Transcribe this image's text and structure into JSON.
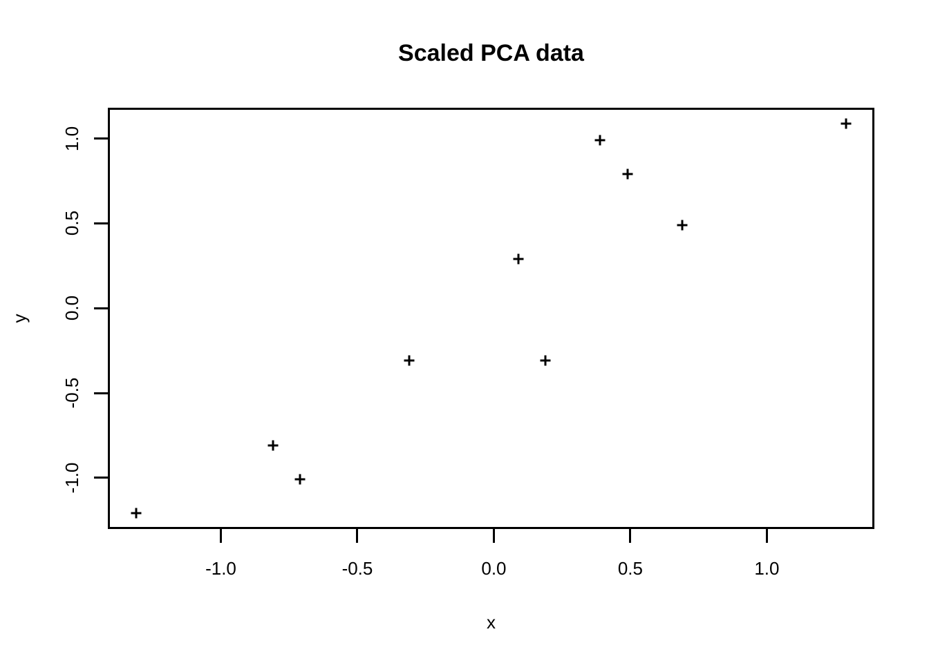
{
  "figure": {
    "background": "#ffffff",
    "foreground": "#000000"
  },
  "chart_data": {
    "type": "scatter",
    "title": "Scaled PCA data",
    "xlabel": "x",
    "ylabel": "y",
    "marker": "plus",
    "point_color": "#000000",
    "grid": false,
    "xlim": [
      -1.414,
      1.394
    ],
    "ylim": [
      -1.302,
      1.182
    ],
    "xticks": {
      "values": [
        -1.0,
        -0.5,
        0.0,
        0.5,
        1.0
      ],
      "labels": [
        "-1.0",
        "-0.5",
        "0.0",
        "0.5",
        "1.0"
      ]
    },
    "yticks": {
      "values": [
        -1.0,
        -0.5,
        0.0,
        0.5,
        1.0
      ],
      "labels": [
        "-1.0",
        "-0.5",
        "0.0",
        "0.5",
        "1.0"
      ]
    },
    "points": [
      {
        "x": 0.69,
        "y": 0.49
      },
      {
        "x": -1.31,
        "y": -1.21
      },
      {
        "x": 0.39,
        "y": 0.99
      },
      {
        "x": 0.09,
        "y": 0.29
      },
      {
        "x": 1.29,
        "y": 1.09
      },
      {
        "x": 0.49,
        "y": 0.79
      },
      {
        "x": 0.19,
        "y": -0.31
      },
      {
        "x": -0.81,
        "y": -0.81
      },
      {
        "x": -0.31,
        "y": -0.31
      },
      {
        "x": -0.71,
        "y": -1.01
      }
    ]
  }
}
